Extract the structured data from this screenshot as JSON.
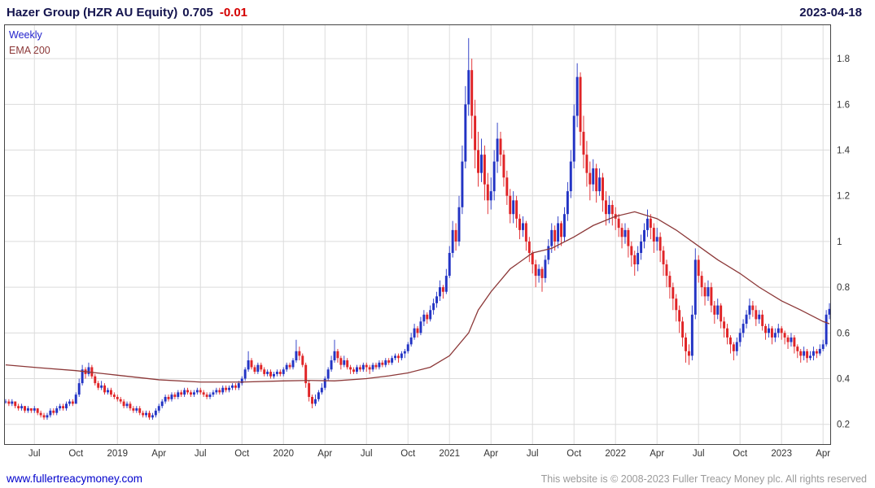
{
  "header": {
    "instrument": "Hazer Group (HZR AU Equity)",
    "price": "0.705",
    "change": "-0.01",
    "date": "2023-04-18"
  },
  "legend": {
    "series_label": "Weekly",
    "overlay_label": "EMA 200"
  },
  "footer": {
    "site_link": "www.fullertreacymoney.com",
    "copyright": "This website is © 2008-2023 Fuller Treacy Money plc. All rights reserved"
  },
  "colors": {
    "title_text": "#14144e",
    "change_negative": "#d40000",
    "up": "#2334c4",
    "down": "#e02427",
    "ema_line": "#8c3838",
    "grid_line": "#dcdcdc",
    "box_border": "#444444",
    "axis_text": "#333333",
    "link_blue": "#0000cc",
    "copyright_gray": "#9a9a9a",
    "legend_weekly_blue": "#2323cc"
  },
  "chart_data": {
    "type": "candlestick",
    "title": "Hazer Group (HZR AU Equity)",
    "instrument": "HZR AU Equity",
    "interval": "Weekly",
    "overlay": "EMA 200",
    "last_price": 0.705,
    "change": -0.01,
    "grid": true,
    "legend_position": "top-left",
    "ylim": [
      0.11,
      1.95
    ],
    "yticks": [
      0.2,
      0.4,
      0.6,
      0.8,
      1,
      1.2,
      1.4,
      1.6,
      1.8
    ],
    "ytick_labels": [
      "0.2",
      "0.4",
      "0.6",
      "0.8",
      "1",
      "1.2",
      "1.4",
      "1.6",
      "1.8"
    ],
    "xticks": [
      {
        "index": 9,
        "label": "Jul"
      },
      {
        "index": 22,
        "label": "Oct"
      },
      {
        "index": 35,
        "label": "2019"
      },
      {
        "index": 48,
        "label": "Apr"
      },
      {
        "index": 61,
        "label": "Jul"
      },
      {
        "index": 74,
        "label": "Oct"
      },
      {
        "index": 87,
        "label": "2020"
      },
      {
        "index": 100,
        "label": "Apr"
      },
      {
        "index": 113,
        "label": "Jul"
      },
      {
        "index": 126,
        "label": "Oct"
      },
      {
        "index": 139,
        "label": "2021"
      },
      {
        "index": 152,
        "label": "Apr"
      },
      {
        "index": 165,
        "label": "Jul"
      },
      {
        "index": 178,
        "label": "Oct"
      },
      {
        "index": 191,
        "label": "2022"
      },
      {
        "index": 204,
        "label": "Apr"
      },
      {
        "index": 217,
        "label": "Jul"
      },
      {
        "index": 230,
        "label": "Oct"
      },
      {
        "index": 243,
        "label": "2023"
      },
      {
        "index": 256,
        "label": "Apr"
      }
    ],
    "open_policy": "open of each weekly candle equals the previous candle close",
    "first_open": 0.3,
    "candles_hlc": [
      [
        0.31,
        0.29,
        0.3
      ],
      [
        0.31,
        0.28,
        0.29
      ],
      [
        0.31,
        0.28,
        0.3
      ],
      [
        0.3,
        0.27,
        0.28
      ],
      [
        0.29,
        0.26,
        0.27
      ],
      [
        0.29,
        0.26,
        0.28
      ],
      [
        0.28,
        0.25,
        0.26
      ],
      [
        0.28,
        0.25,
        0.27
      ],
      [
        0.27,
        0.25,
        0.26
      ],
      [
        0.28,
        0.25,
        0.27
      ],
      [
        0.27,
        0.24,
        0.25
      ],
      [
        0.26,
        0.23,
        0.24
      ],
      [
        0.25,
        0.22,
        0.23
      ],
      [
        0.25,
        0.22,
        0.24
      ],
      [
        0.27,
        0.23,
        0.26
      ],
      [
        0.27,
        0.24,
        0.25
      ],
      [
        0.28,
        0.24,
        0.27
      ],
      [
        0.29,
        0.26,
        0.28
      ],
      [
        0.29,
        0.26,
        0.27
      ],
      [
        0.3,
        0.26,
        0.29
      ],
      [
        0.31,
        0.28,
        0.3
      ],
      [
        0.31,
        0.28,
        0.29
      ],
      [
        0.34,
        0.29,
        0.33
      ],
      [
        0.4,
        0.32,
        0.38
      ],
      [
        0.46,
        0.37,
        0.44
      ],
      [
        0.45,
        0.4,
        0.42
      ],
      [
        0.47,
        0.41,
        0.45
      ],
      [
        0.46,
        0.4,
        0.41
      ],
      [
        0.42,
        0.37,
        0.38
      ],
      [
        0.39,
        0.35,
        0.36
      ],
      [
        0.39,
        0.35,
        0.37
      ],
      [
        0.38,
        0.33,
        0.34
      ],
      [
        0.36,
        0.33,
        0.35
      ],
      [
        0.36,
        0.32,
        0.33
      ],
      [
        0.34,
        0.31,
        0.32
      ],
      [
        0.33,
        0.3,
        0.31
      ],
      [
        0.32,
        0.29,
        0.3
      ],
      [
        0.31,
        0.27,
        0.28
      ],
      [
        0.3,
        0.27,
        0.29
      ],
      [
        0.3,
        0.26,
        0.27
      ],
      [
        0.28,
        0.25,
        0.26
      ],
      [
        0.28,
        0.25,
        0.27
      ],
      [
        0.28,
        0.24,
        0.25
      ],
      [
        0.26,
        0.23,
        0.24
      ],
      [
        0.26,
        0.23,
        0.25
      ],
      [
        0.26,
        0.22,
        0.23
      ],
      [
        0.25,
        0.22,
        0.24
      ],
      [
        0.27,
        0.23,
        0.26
      ],
      [
        0.29,
        0.25,
        0.28
      ],
      [
        0.31,
        0.27,
        0.3
      ],
      [
        0.33,
        0.29,
        0.32
      ],
      [
        0.33,
        0.3,
        0.31
      ],
      [
        0.34,
        0.3,
        0.33
      ],
      [
        0.34,
        0.31,
        0.32
      ],
      [
        0.35,
        0.31,
        0.34
      ],
      [
        0.35,
        0.32,
        0.33
      ],
      [
        0.36,
        0.32,
        0.35
      ],
      [
        0.36,
        0.33,
        0.34
      ],
      [
        0.35,
        0.32,
        0.33
      ],
      [
        0.35,
        0.32,
        0.34
      ],
      [
        0.36,
        0.33,
        0.35
      ],
      [
        0.36,
        0.33,
        0.34
      ],
      [
        0.35,
        0.32,
        0.33
      ],
      [
        0.34,
        0.31,
        0.32
      ],
      [
        0.34,
        0.31,
        0.33
      ],
      [
        0.35,
        0.32,
        0.34
      ],
      [
        0.36,
        0.33,
        0.35
      ],
      [
        0.36,
        0.33,
        0.34
      ],
      [
        0.37,
        0.33,
        0.36
      ],
      [
        0.37,
        0.34,
        0.35
      ],
      [
        0.37,
        0.34,
        0.36
      ],
      [
        0.38,
        0.35,
        0.37
      ],
      [
        0.38,
        0.35,
        0.36
      ],
      [
        0.39,
        0.35,
        0.38
      ],
      [
        0.41,
        0.37,
        0.4
      ],
      [
        0.45,
        0.39,
        0.44
      ],
      [
        0.52,
        0.43,
        0.48
      ],
      [
        0.49,
        0.44,
        0.45
      ],
      [
        0.46,
        0.42,
        0.43
      ],
      [
        0.47,
        0.42,
        0.46
      ],
      [
        0.47,
        0.43,
        0.44
      ],
      [
        0.45,
        0.41,
        0.42
      ],
      [
        0.44,
        0.41,
        0.43
      ],
      [
        0.44,
        0.4,
        0.41
      ],
      [
        0.43,
        0.4,
        0.42
      ],
      [
        0.44,
        0.41,
        0.43
      ],
      [
        0.44,
        0.41,
        0.42
      ],
      [
        0.45,
        0.41,
        0.44
      ],
      [
        0.47,
        0.43,
        0.46
      ],
      [
        0.47,
        0.44,
        0.45
      ],
      [
        0.49,
        0.44,
        0.48
      ],
      [
        0.57,
        0.47,
        0.52
      ],
      [
        0.54,
        0.48,
        0.5
      ],
      [
        0.51,
        0.45,
        0.46
      ],
      [
        0.47,
        0.36,
        0.38
      ],
      [
        0.39,
        0.3,
        0.32
      ],
      [
        0.33,
        0.27,
        0.29
      ],
      [
        0.33,
        0.28,
        0.31
      ],
      [
        0.35,
        0.3,
        0.34
      ],
      [
        0.38,
        0.33,
        0.36
      ],
      [
        0.41,
        0.35,
        0.4
      ],
      [
        0.45,
        0.39,
        0.44
      ],
      [
        0.5,
        0.43,
        0.48
      ],
      [
        0.57,
        0.47,
        0.52
      ],
      [
        0.53,
        0.47,
        0.49
      ],
      [
        0.5,
        0.44,
        0.46
      ],
      [
        0.5,
        0.45,
        0.48
      ],
      [
        0.49,
        0.44,
        0.45
      ],
      [
        0.46,
        0.42,
        0.44
      ],
      [
        0.45,
        0.42,
        0.43
      ],
      [
        0.46,
        0.42,
        0.45
      ],
      [
        0.46,
        0.43,
        0.44
      ],
      [
        0.47,
        0.43,
        0.46
      ],
      [
        0.47,
        0.43,
        0.45
      ],
      [
        0.46,
        0.42,
        0.44
      ],
      [
        0.47,
        0.43,
        0.46
      ],
      [
        0.47,
        0.44,
        0.45
      ],
      [
        0.48,
        0.44,
        0.47
      ],
      [
        0.48,
        0.45,
        0.46
      ],
      [
        0.49,
        0.45,
        0.48
      ],
      [
        0.49,
        0.46,
        0.47
      ],
      [
        0.5,
        0.46,
        0.49
      ],
      [
        0.51,
        0.48,
        0.5
      ],
      [
        0.51,
        0.47,
        0.49
      ],
      [
        0.52,
        0.48,
        0.51
      ],
      [
        0.53,
        0.49,
        0.52
      ],
      [
        0.56,
        0.51,
        0.55
      ],
      [
        0.6,
        0.54,
        0.58
      ],
      [
        0.64,
        0.57,
        0.62
      ],
      [
        0.63,
        0.58,
        0.6
      ],
      [
        0.67,
        0.59,
        0.65
      ],
      [
        0.7,
        0.63,
        0.68
      ],
      [
        0.69,
        0.64,
        0.66
      ],
      [
        0.72,
        0.65,
        0.7
      ],
      [
        0.75,
        0.68,
        0.73
      ],
      [
        0.78,
        0.71,
        0.76
      ],
      [
        0.83,
        0.74,
        0.8
      ],
      [
        0.81,
        0.75,
        0.78
      ],
      [
        0.88,
        0.77,
        0.85
      ],
      [
        0.98,
        0.84,
        0.95
      ],
      [
        1.09,
        0.93,
        1.05
      ],
      [
        1.08,
        0.96,
        1.0
      ],
      [
        1.2,
        0.98,
        1.15
      ],
      [
        1.42,
        1.12,
        1.35
      ],
      [
        1.68,
        1.32,
        1.6
      ],
      [
        1.89,
        1.55,
        1.75
      ],
      [
        1.8,
        1.45,
        1.55
      ],
      [
        1.62,
        1.32,
        1.4
      ],
      [
        1.48,
        1.24,
        1.3
      ],
      [
        1.45,
        1.26,
        1.38
      ],
      [
        1.42,
        1.18,
        1.25
      ],
      [
        1.3,
        1.12,
        1.18
      ],
      [
        1.28,
        1.14,
        1.22
      ],
      [
        1.4,
        1.18,
        1.35
      ],
      [
        1.52,
        1.3,
        1.45
      ],
      [
        1.48,
        1.33,
        1.38
      ],
      [
        1.4,
        1.24,
        1.28
      ],
      [
        1.31,
        1.16,
        1.2
      ],
      [
        1.23,
        1.08,
        1.12
      ],
      [
        1.22,
        1.08,
        1.18
      ],
      [
        1.2,
        1.06,
        1.1
      ],
      [
        1.12,
        1.01,
        1.05
      ],
      [
        1.11,
        1.02,
        1.08
      ],
      [
        1.09,
        0.96,
        1.0
      ],
      [
        1.02,
        0.91,
        0.95
      ],
      [
        0.96,
        0.86,
        0.9
      ],
      [
        0.92,
        0.8,
        0.85
      ],
      [
        0.9,
        0.82,
        0.88
      ],
      [
        0.89,
        0.78,
        0.84
      ],
      [
        0.94,
        0.82,
        0.92
      ],
      [
        1.01,
        0.9,
        0.98
      ],
      [
        1.08,
        0.95,
        1.05
      ],
      [
        1.07,
        0.96,
        1.0
      ],
      [
        1.11,
        0.97,
        1.08
      ],
      [
        1.09,
        0.98,
        1.02
      ],
      [
        1.15,
        1.0,
        1.12
      ],
      [
        1.26,
        1.09,
        1.22
      ],
      [
        1.4,
        1.19,
        1.35
      ],
      [
        1.6,
        1.32,
        1.55
      ],
      [
        1.78,
        1.5,
        1.72
      ],
      [
        1.74,
        1.42,
        1.48
      ],
      [
        1.55,
        1.32,
        1.38
      ],
      [
        1.44,
        1.24,
        1.3
      ],
      [
        1.35,
        1.18,
        1.25
      ],
      [
        1.36,
        1.22,
        1.32
      ],
      [
        1.34,
        1.17,
        1.22
      ],
      [
        1.32,
        1.2,
        1.28
      ],
      [
        1.3,
        1.13,
        1.18
      ],
      [
        1.22,
        1.07,
        1.12
      ],
      [
        1.2,
        1.08,
        1.16
      ],
      [
        1.18,
        1.07,
        1.12
      ],
      [
        1.15,
        1.05,
        1.1
      ],
      [
        1.12,
        1.02,
        1.06
      ],
      [
        1.08,
        0.97,
        1.02
      ],
      [
        1.08,
        0.99,
        1.05
      ],
      [
        1.06,
        0.93,
        0.98
      ],
      [
        1.0,
        0.89,
        0.94
      ],
      [
        0.96,
        0.85,
        0.9
      ],
      [
        0.98,
        0.87,
        0.95
      ],
      [
        1.03,
        0.92,
        1.0
      ],
      [
        1.08,
        0.97,
        1.05
      ],
      [
        1.14,
        1.02,
        1.1
      ],
      [
        1.12,
        1.01,
        1.06
      ],
      [
        1.08,
        0.95,
        1.0
      ],
      [
        1.06,
        0.96,
        1.02
      ],
      [
        1.04,
        0.91,
        0.96
      ],
      [
        0.98,
        0.85,
        0.9
      ],
      [
        0.92,
        0.8,
        0.85
      ],
      [
        0.87,
        0.75,
        0.8
      ],
      [
        0.82,
        0.7,
        0.75
      ],
      [
        0.77,
        0.65,
        0.7
      ],
      [
        0.72,
        0.6,
        0.65
      ],
      [
        0.67,
        0.54,
        0.58
      ],
      [
        0.6,
        0.47,
        0.52
      ],
      [
        0.55,
        0.46,
        0.5
      ],
      [
        0.72,
        0.48,
        0.68
      ],
      [
        0.97,
        0.66,
        0.92
      ],
      [
        0.94,
        0.82,
        0.85
      ],
      [
        0.87,
        0.76,
        0.8
      ],
      [
        0.82,
        0.72,
        0.76
      ],
      [
        0.83,
        0.74,
        0.8
      ],
      [
        0.82,
        0.69,
        0.72
      ],
      [
        0.74,
        0.64,
        0.68
      ],
      [
        0.75,
        0.66,
        0.72
      ],
      [
        0.73,
        0.62,
        0.65
      ],
      [
        0.67,
        0.58,
        0.62
      ],
      [
        0.64,
        0.55,
        0.58
      ],
      [
        0.59,
        0.51,
        0.55
      ],
      [
        0.56,
        0.48,
        0.52
      ],
      [
        0.58,
        0.5,
        0.56
      ],
      [
        0.62,
        0.54,
        0.6
      ],
      [
        0.66,
        0.58,
        0.64
      ],
      [
        0.7,
        0.62,
        0.68
      ],
      [
        0.75,
        0.66,
        0.72
      ],
      [
        0.74,
        0.67,
        0.7
      ],
      [
        0.72,
        0.63,
        0.66
      ],
      [
        0.7,
        0.64,
        0.68
      ],
      [
        0.7,
        0.61,
        0.63
      ],
      [
        0.64,
        0.57,
        0.6
      ],
      [
        0.64,
        0.58,
        0.62
      ],
      [
        0.63,
        0.55,
        0.58
      ],
      [
        0.62,
        0.56,
        0.6
      ],
      [
        0.64,
        0.58,
        0.62
      ],
      [
        0.63,
        0.57,
        0.6
      ],
      [
        0.61,
        0.55,
        0.58
      ],
      [
        0.59,
        0.53,
        0.56
      ],
      [
        0.6,
        0.54,
        0.58
      ],
      [
        0.59,
        0.51,
        0.54
      ],
      [
        0.55,
        0.49,
        0.52
      ],
      [
        0.53,
        0.47,
        0.5
      ],
      [
        0.54,
        0.48,
        0.52
      ],
      [
        0.53,
        0.47,
        0.49
      ],
      [
        0.52,
        0.48,
        0.5
      ],
      [
        0.54,
        0.48,
        0.52
      ],
      [
        0.53,
        0.49,
        0.51
      ],
      [
        0.55,
        0.5,
        0.53
      ],
      [
        0.57,
        0.52,
        0.55
      ],
      [
        0.7,
        0.54,
        0.68
      ],
      [
        0.73,
        0.66,
        0.705
      ]
    ],
    "ema200_points": [
      [
        0,
        0.46
      ],
      [
        10,
        0.448
      ],
      [
        22,
        0.435
      ],
      [
        35,
        0.415
      ],
      [
        48,
        0.395
      ],
      [
        61,
        0.385
      ],
      [
        74,
        0.385
      ],
      [
        87,
        0.39
      ],
      [
        95,
        0.392
      ],
      [
        103,
        0.39
      ],
      [
        113,
        0.4
      ],
      [
        120,
        0.412
      ],
      [
        126,
        0.425
      ],
      [
        133,
        0.45
      ],
      [
        139,
        0.5
      ],
      [
        145,
        0.6
      ],
      [
        148,
        0.7
      ],
      [
        152,
        0.78
      ],
      [
        158,
        0.88
      ],
      [
        165,
        0.95
      ],
      [
        171,
        0.97
      ],
      [
        178,
        1.02
      ],
      [
        184,
        1.07
      ],
      [
        191,
        1.11
      ],
      [
        197,
        1.13
      ],
      [
        204,
        1.1
      ],
      [
        210,
        1.05
      ],
      [
        217,
        0.98
      ],
      [
        223,
        0.92
      ],
      [
        230,
        0.86
      ],
      [
        236,
        0.8
      ],
      [
        243,
        0.74
      ],
      [
        249,
        0.7
      ],
      [
        256,
        0.65
      ],
      [
        258,
        0.64
      ]
    ]
  }
}
